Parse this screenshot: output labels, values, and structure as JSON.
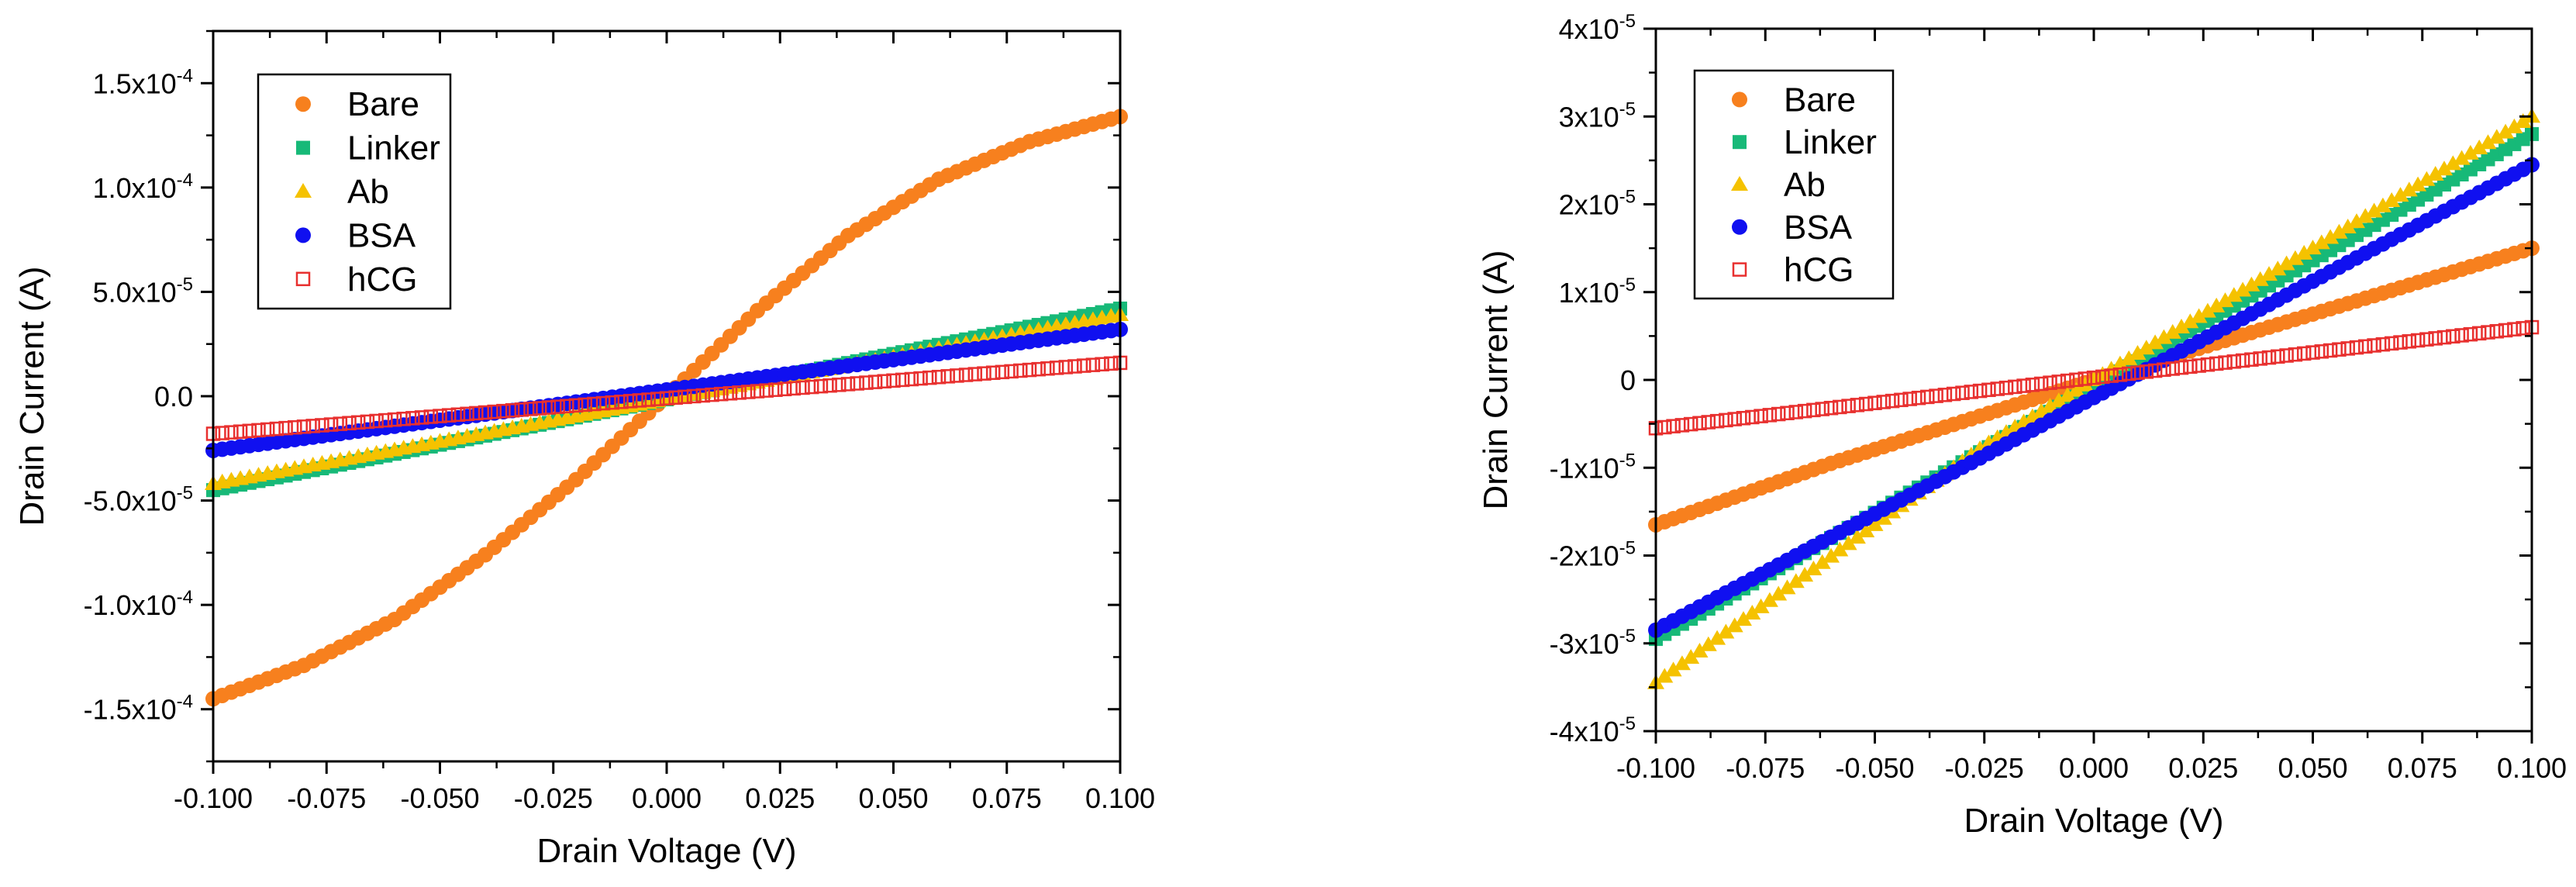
{
  "chart_data": [
    {
      "type": "scatter",
      "title": "",
      "xlabel": "Drain Voltage (V)",
      "ylabel": "Drain Current (A)",
      "xlim": [
        -0.1,
        0.1
      ],
      "ylim": [
        -0.000175,
        0.000175
      ],
      "x_ticks": [
        -0.1,
        -0.075,
        -0.05,
        -0.025,
        0.0,
        0.025,
        0.05,
        0.075,
        0.1
      ],
      "x_tick_labels": [
        "-0.100",
        "-0.075",
        "-0.050",
        "-0.025",
        "0.000",
        "0.025",
        "0.050",
        "0.075",
        "0.100"
      ],
      "y_ticks": [
        {
          "value": 0.00015,
          "mant": "1.5x10",
          "exp": "-4"
        },
        {
          "value": 0.0001,
          "mant": "1.0x10",
          "exp": "-4"
        },
        {
          "value": 5e-05,
          "mant": "5.0x10",
          "exp": "-5"
        },
        {
          "value": 0,
          "mant": "0.0",
          "exp": ""
        },
        {
          "value": -5e-05,
          "mant": "-5.0x10",
          "exp": "-5"
        },
        {
          "value": -0.0001,
          "mant": "-1.0x10",
          "exp": "-4"
        },
        {
          "value": -0.00015,
          "mant": "-1.5x10",
          "exp": "-4"
        }
      ],
      "legend_position": "top-left",
      "series": [
        {
          "name": "Bare",
          "marker": "circle",
          "color": "#F7801E",
          "x": [
            -0.1,
            -0.08,
            -0.06,
            -0.04,
            -0.02,
            0.0,
            0.02,
            0.04,
            0.06,
            0.08,
            0.1
          ],
          "y": [
            -0.000145,
            -0.000129,
            -0.000107,
            -7.6e-05,
            -4e-05,
            0.0,
            4.1e-05,
            7.7e-05,
            0.000104,
            0.000122,
            0.000134
          ]
        },
        {
          "name": "Linker",
          "marker": "square",
          "color": "#17B978",
          "x": [
            -0.1,
            0.1
          ],
          "y": [
            -4.5e-05,
            4.2e-05
          ]
        },
        {
          "name": "Ab",
          "marker": "triangle",
          "color": "#F5C200",
          "x": [
            -0.1,
            0.1
          ],
          "y": [
            -4.2e-05,
            3.9e-05
          ]
        },
        {
          "name": "BSA",
          "marker": "circle",
          "color": "#1010F0",
          "x": [
            -0.1,
            0.1
          ],
          "y": [
            -2.6e-05,
            3.2e-05
          ]
        },
        {
          "name": "hCG",
          "marker": "open-square",
          "color": "#E8302F",
          "x": [
            -0.1,
            0.1
          ],
          "y": [
            -1.8e-05,
            1.6e-05
          ]
        }
      ]
    },
    {
      "type": "scatter",
      "title": "",
      "xlabel": "Drain Voltage (V)",
      "ylabel": "Drain Current (A)",
      "xlim": [
        -0.1,
        0.1
      ],
      "ylim": [
        -4e-05,
        4e-05
      ],
      "x_ticks": [
        -0.1,
        -0.075,
        -0.05,
        -0.025,
        0.0,
        0.025,
        0.05,
        0.075,
        0.1
      ],
      "x_tick_labels": [
        "-0.100",
        "-0.075",
        "-0.050",
        "-0.025",
        "0.000",
        "0.025",
        "0.050",
        "0.075",
        "0.100"
      ],
      "y_ticks": [
        {
          "value": 4e-05,
          "mant": "4x10",
          "exp": "-5"
        },
        {
          "value": 3e-05,
          "mant": "3x10",
          "exp": "-5"
        },
        {
          "value": 2e-05,
          "mant": "2x10",
          "exp": "-5"
        },
        {
          "value": 1e-05,
          "mant": "1x10",
          "exp": "-5"
        },
        {
          "value": 0,
          "mant": "0",
          "exp": ""
        },
        {
          "value": -1e-05,
          "mant": "-1x10",
          "exp": "-5"
        },
        {
          "value": -2e-05,
          "mant": "-2x10",
          "exp": "-5"
        },
        {
          "value": -3e-05,
          "mant": "-3x10",
          "exp": "-5"
        },
        {
          "value": -4e-05,
          "mant": "-4x10",
          "exp": "-5"
        }
      ],
      "legend_position": "top-left",
      "series": [
        {
          "name": "Bare",
          "marker": "circle",
          "color": "#F7801E",
          "x": [
            -0.1,
            -0.06,
            0.0,
            0.1
          ],
          "y": [
            -1.65e-05,
            -9.5e-06,
            0.0,
            1.5e-05
          ]
        },
        {
          "name": "Linker",
          "marker": "square",
          "color": "#17B978",
          "x": [
            -0.1,
            0.1
          ],
          "y": [
            -2.95e-05,
            2.8e-05
          ]
        },
        {
          "name": "Ab",
          "marker": "triangle",
          "color": "#F5C200",
          "x": [
            -0.1,
            -0.025,
            0.0,
            0.1
          ],
          "y": [
            -3.45e-05,
            -7.5e-06,
            0.0,
            3e-05
          ]
        },
        {
          "name": "BSA",
          "marker": "circle",
          "color": "#1010F0",
          "x": [
            -0.1,
            0.1
          ],
          "y": [
            -2.85e-05,
            2.45e-05
          ]
        },
        {
          "name": "hCG",
          "marker": "open-square",
          "color": "#E8302F",
          "x": [
            -0.1,
            0.1
          ],
          "y": [
            -5.5e-06,
            6e-06
          ]
        }
      ]
    }
  ]
}
